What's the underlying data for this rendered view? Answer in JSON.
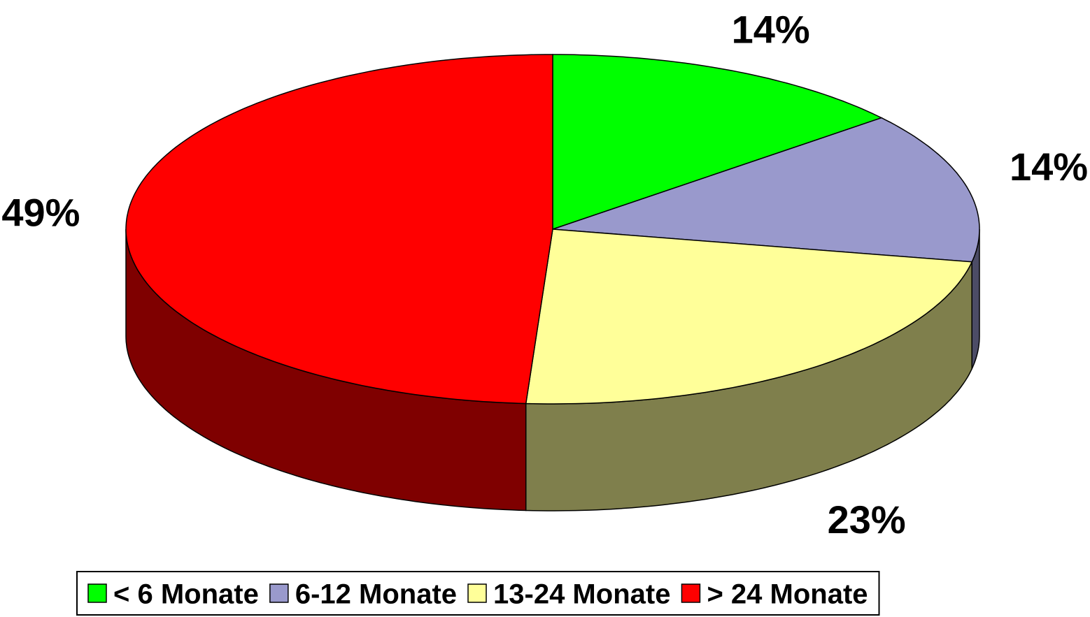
{
  "chart_data": {
    "type": "pie",
    "categories": [
      "< 6 Monate",
      "6-12 Monate",
      "13-24 Monate",
      "> 24 Monate"
    ],
    "values": [
      14,
      14,
      23,
      49
    ],
    "value_labels": [
      "14%",
      "14%",
      "23%",
      "49%"
    ],
    "colors": [
      "#00ff00",
      "#9999cc",
      "#ffff99",
      "#ff0000"
    ],
    "legend": "bottom"
  }
}
